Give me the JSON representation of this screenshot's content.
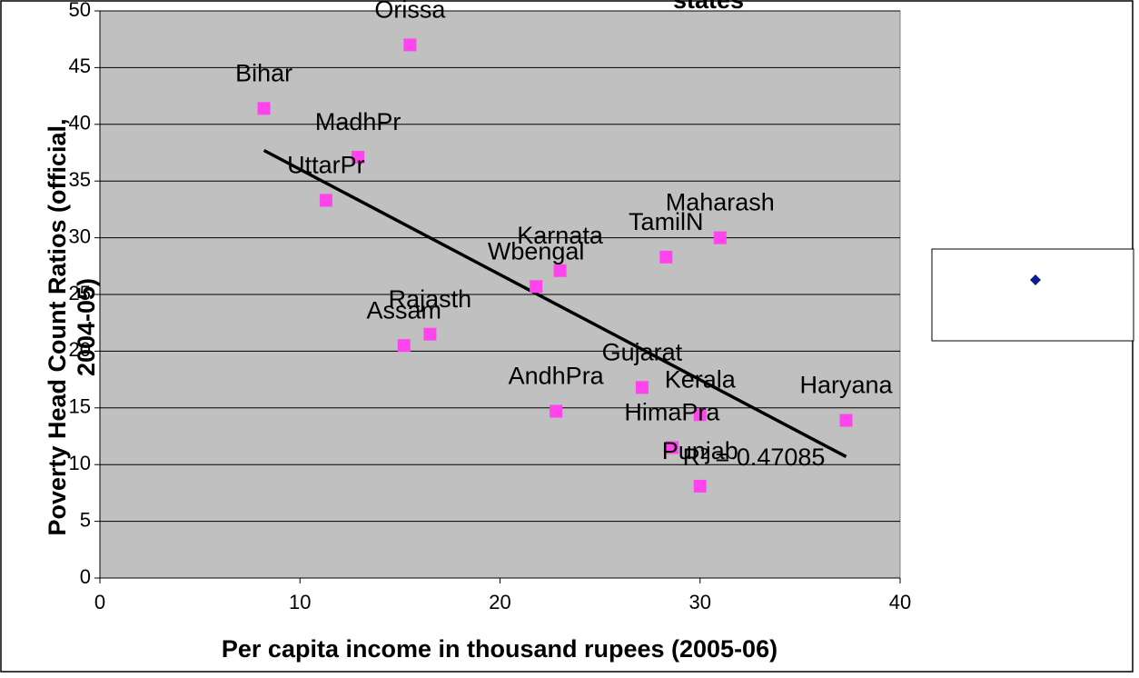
{
  "chart_data": {
    "type": "scatter",
    "title": "states",
    "xlabel": "Per capita income in thousand rupees (2005-06)",
    "ylabel": [
      "Poverty Head Count Ratios (official,",
      "2004-05)"
    ],
    "series": [
      {
        "color": "#ff44ee",
        "labels": [
          "Bihar",
          "Orissa",
          "MadhPr",
          "UttarPr",
          "Maharash",
          "TamilN",
          "Karnata",
          "Wbengal",
          "Rajasth",
          "Assam",
          "Gujarat",
          "AndhPra",
          "Kerala",
          "Haryana",
          "HimaPra",
          "Punjab"
        ],
        "x": [
          8.2,
          15.5,
          12.9,
          11.3,
          31.0,
          28.3,
          23.0,
          21.8,
          16.5,
          15.2,
          27.1,
          22.8,
          30.0,
          37.3,
          28.6,
          30.0
        ],
        "values": [
          41.4,
          47.0,
          37.1,
          33.3,
          30.0,
          28.3,
          27.1,
          25.7,
          21.5,
          20.5,
          16.8,
          14.7,
          14.4,
          13.9,
          11.5,
          8.1
        ]
      }
    ],
    "trendline": {
      "x": [
        8.2,
        37.3
      ],
      "values": [
        37.7,
        10.7
      ],
      "color": "#000000",
      "annotation": "R² = 0.47085"
    },
    "xlim": [
      0,
      40
    ],
    "xticks": [
      0,
      10,
      20,
      30,
      40
    ],
    "ylim": [
      0,
      50
    ],
    "yticks": [
      0,
      5,
      10,
      15,
      20,
      25,
      30,
      35,
      40,
      45,
      50
    ],
    "grid": true
  }
}
